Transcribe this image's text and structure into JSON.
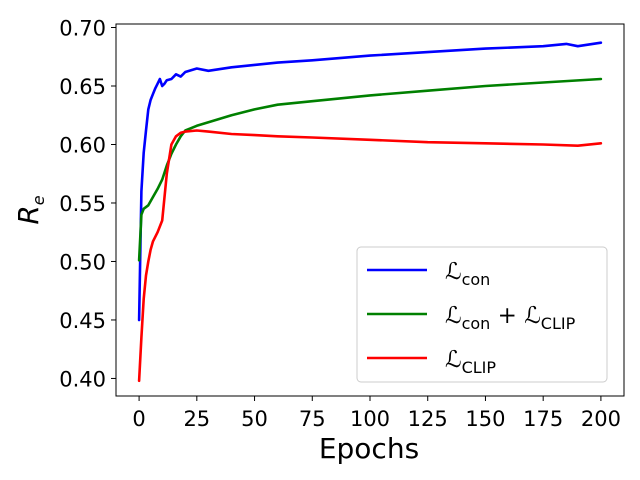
{
  "chart_data": {
    "type": "line",
    "title": "",
    "xlabel": "Epochs",
    "ylabel": "R",
    "ylabel_sub": "e",
    "xlim": [
      -10,
      210
    ],
    "ylim": [
      0.385,
      0.703
    ],
    "xticks": [
      0,
      25,
      50,
      75,
      100,
      125,
      150,
      175,
      200
    ],
    "xtick_labels": [
      "0",
      "25",
      "50",
      "75",
      "100",
      "125",
      "150",
      "175",
      "200"
    ],
    "yticks": [
      0.4,
      0.45,
      0.5,
      0.55,
      0.6,
      0.65,
      0.7
    ],
    "ytick_labels": [
      "0.40",
      "0.45",
      "0.50",
      "0.55",
      "0.60",
      "0.65",
      "0.70"
    ],
    "grid": false,
    "legend_position": "bottom-right",
    "series": [
      {
        "name": "L_con",
        "label_main": "ℒ",
        "label_sub": "con",
        "label_sub2": "",
        "color": "#0000ff",
        "x": [
          0,
          1,
          2,
          3,
          4,
          5,
          6,
          7,
          8,
          9,
          10,
          11,
          12,
          14,
          16,
          18,
          20,
          25,
          30,
          40,
          50,
          60,
          75,
          100,
          125,
          150,
          175,
          185,
          190,
          200
        ],
        "y": [
          0.45,
          0.56,
          0.593,
          0.612,
          0.63,
          0.638,
          0.643,
          0.648,
          0.652,
          0.656,
          0.65,
          0.652,
          0.655,
          0.656,
          0.66,
          0.658,
          0.662,
          0.665,
          0.663,
          0.666,
          0.668,
          0.67,
          0.672,
          0.676,
          0.679,
          0.682,
          0.684,
          0.686,
          0.684,
          0.687
        ]
      },
      {
        "name": "L_con + L_CLIP",
        "label_main": "ℒ",
        "label_sub": "con",
        "label_sub2": "CLIP",
        "color": "#008000",
        "x": [
          0,
          1,
          2,
          4,
          6,
          8,
          10,
          12,
          14,
          16,
          18,
          20,
          25,
          30,
          40,
          50,
          60,
          75,
          100,
          125,
          150,
          175,
          200
        ],
        "y": [
          0.501,
          0.54,
          0.545,
          0.548,
          0.555,
          0.562,
          0.57,
          0.582,
          0.592,
          0.6,
          0.607,
          0.612,
          0.616,
          0.619,
          0.625,
          0.63,
          0.634,
          0.637,
          0.642,
          0.646,
          0.65,
          0.653,
          0.656
        ]
      },
      {
        "name": "L_CLIP",
        "label_main": "ℒ",
        "label_sub": "CLIP",
        "label_sub2": "",
        "color": "#ff0000",
        "x": [
          0,
          1,
          2,
          3,
          4,
          5,
          6,
          8,
          10,
          12,
          14,
          16,
          18,
          20,
          25,
          30,
          40,
          50,
          60,
          75,
          100,
          125,
          150,
          175,
          190,
          200
        ],
        "y": [
          0.398,
          0.435,
          0.468,
          0.488,
          0.5,
          0.51,
          0.517,
          0.525,
          0.535,
          0.575,
          0.6,
          0.607,
          0.61,
          0.611,
          0.612,
          0.611,
          0.609,
          0.608,
          0.607,
          0.606,
          0.604,
          0.602,
          0.601,
          0.6,
          0.599,
          0.601
        ]
      }
    ]
  }
}
